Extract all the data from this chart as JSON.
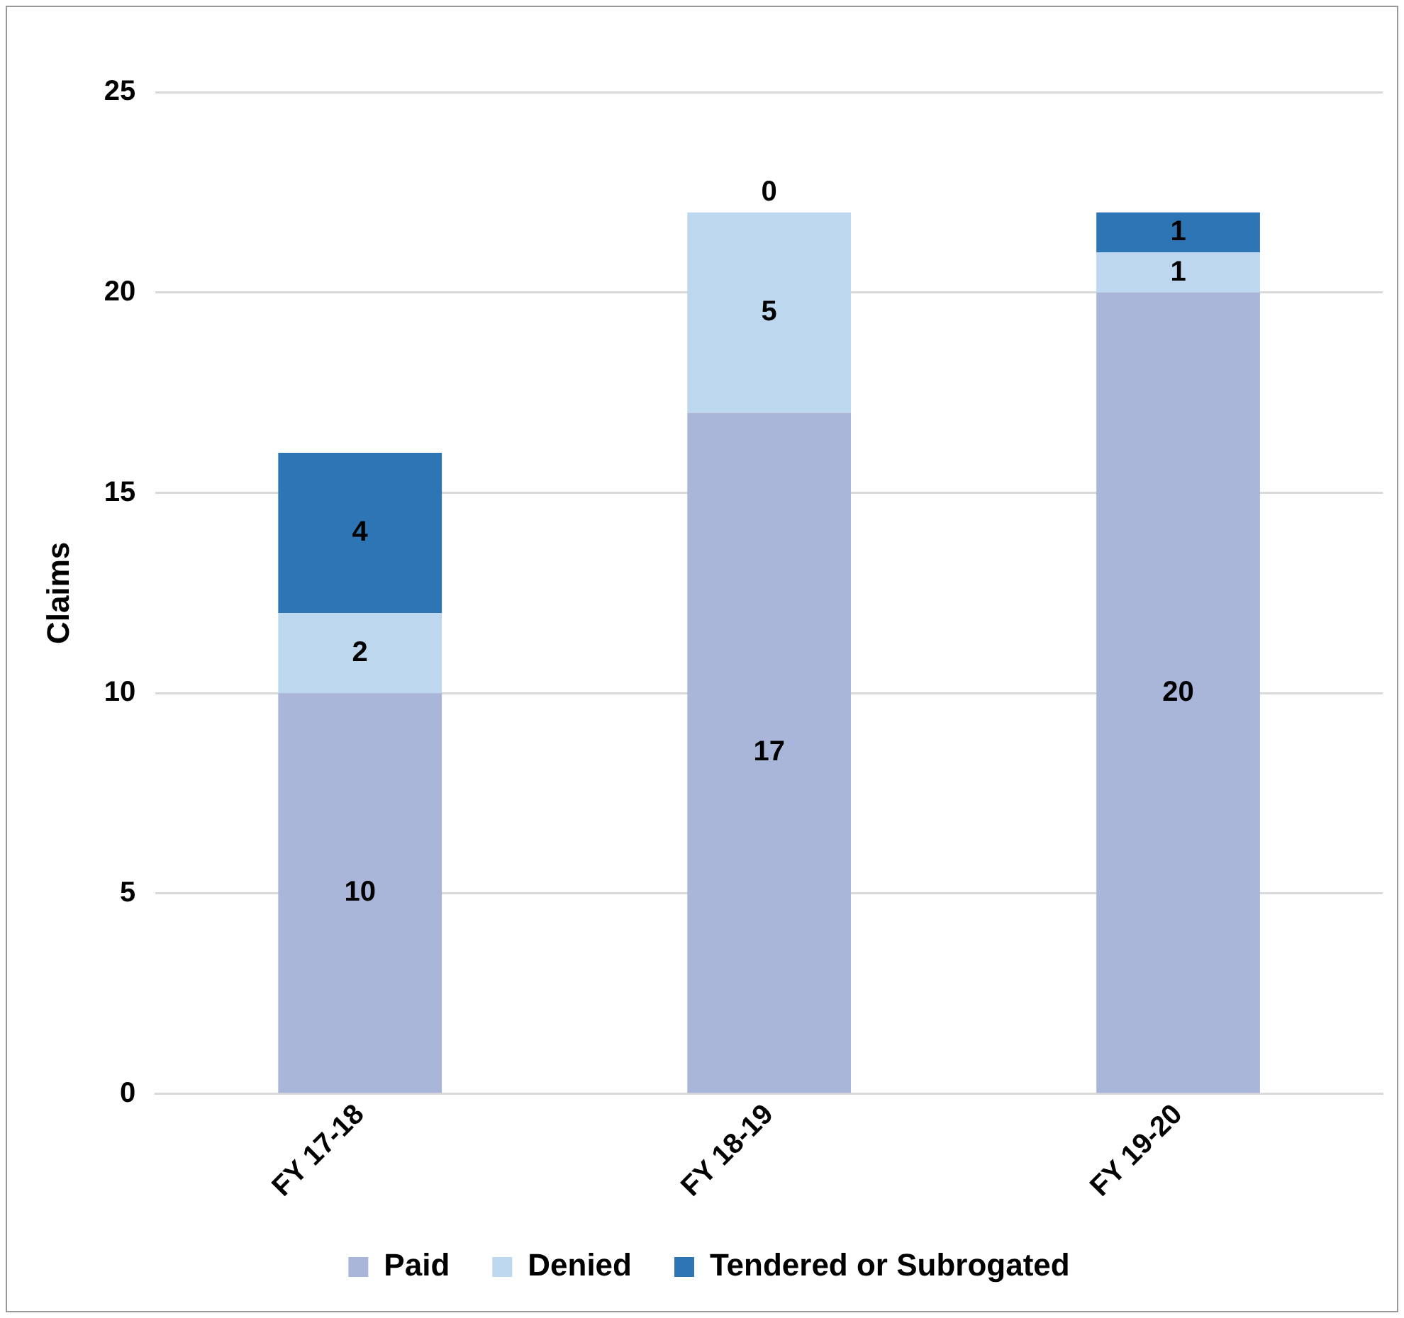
{
  "chart_data": {
    "type": "bar",
    "stacked": true,
    "ylabel": "Claims",
    "categories": [
      "FY 17-18",
      "FY 18-19",
      "FY 19-20"
    ],
    "series": [
      {
        "name": "Paid",
        "color": "#a9b6da",
        "values": [
          10,
          17,
          20
        ]
      },
      {
        "name": "Denied",
        "color": "#bdd7ee",
        "values": [
          2,
          5,
          1
        ]
      },
      {
        "name": "Tendered or Subrogated",
        "color": "#2e75b6",
        "values": [
          4,
          0,
          1
        ]
      }
    ],
    "ylim": [
      0,
      25
    ],
    "yticks": [
      0,
      5,
      10,
      15,
      20,
      25
    ],
    "grid": "y",
    "legend": "bottom",
    "data_labels": true
  }
}
